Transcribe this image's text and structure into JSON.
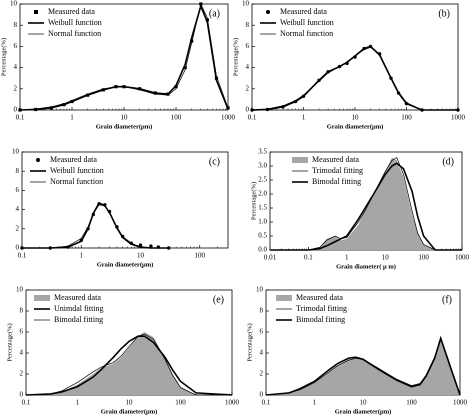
{
  "chart_data": [
    {
      "type": "line",
      "label": "(a)",
      "ylabel": "Percentage(%)",
      "xlabel": "Grain diameter(μm)",
      "log_x": true,
      "legend": "upper left",
      "xlim": [
        0.1,
        1000
      ],
      "xticks": [
        0.1,
        1,
        10,
        100,
        1000
      ],
      "ylim": [
        0,
        10
      ],
      "yticks": [
        0,
        2,
        4,
        6,
        8,
        10
      ],
      "x": [
        0.1,
        0.2,
        0.4,
        0.7,
        1,
        2,
        4,
        7,
        10,
        20,
        40,
        70,
        100,
        150,
        200,
        300,
        400,
        600,
        1000
      ],
      "series": [
        {
          "name": "Measured data",
          "mark": "square",
          "color": "#000",
          "values": [
            0,
            0.05,
            0.2,
            0.5,
            0.8,
            1.4,
            1.9,
            2.2,
            2.2,
            2,
            1.6,
            1.5,
            2.2,
            4,
            6.5,
            10,
            8.5,
            3,
            0.2
          ]
        },
        {
          "name": "Weibull function",
          "mark": "line",
          "width": 1.6,
          "color": "#000",
          "values": [
            0,
            0.05,
            0.2,
            0.5,
            0.8,
            1.4,
            1.9,
            2.2,
            2.2,
            2,
            1.6,
            1.5,
            2.3,
            4.3,
            6.8,
            9.8,
            8.3,
            2.8,
            0.1
          ]
        },
        {
          "name": "Normal function",
          "mark": "line",
          "width": 0.7,
          "color": "#000",
          "values": [
            0,
            0.1,
            0.3,
            0.6,
            0.9,
            1.5,
            2,
            2.2,
            2.2,
            1.9,
            1.5,
            1.4,
            2,
            3.8,
            6.3,
            10,
            8.7,
            3.2,
            0.2
          ]
        }
      ]
    },
    {
      "type": "line",
      "label": "(b)",
      "ylabel": "Percentage(%)",
      "xlabel": "Grain diameter(μm)",
      "log_x": true,
      "legend": "upper left",
      "xlim": [
        0.1,
        1000
      ],
      "xticks": [
        0.1,
        1,
        10,
        100,
        1000
      ],
      "ylim": [
        0,
        10
      ],
      "yticks": [
        0,
        2,
        4,
        6,
        8,
        10
      ],
      "x": [
        0.1,
        0.2,
        0.4,
        0.7,
        1,
        2,
        3,
        5,
        7,
        10,
        15,
        20,
        30,
        50,
        70,
        100,
        200,
        1000
      ],
      "series": [
        {
          "name": "Measured data",
          "mark": "circle",
          "color": "#000",
          "values": [
            0,
            0.05,
            0.3,
            0.8,
            1.3,
            2.8,
            3.6,
            4.1,
            4.4,
            5,
            5.8,
            6,
            5.3,
            3,
            1.6,
            0.6,
            0,
            0
          ]
        },
        {
          "name": "Weibull function",
          "mark": "line",
          "width": 1.6,
          "color": "#000",
          "values": [
            0,
            0.05,
            0.3,
            0.8,
            1.3,
            2.8,
            3.6,
            4.1,
            4.5,
            5.1,
            5.8,
            6,
            5.2,
            3,
            1.6,
            0.6,
            0,
            0
          ]
        },
        {
          "name": "Normal function",
          "mark": "line",
          "width": 0.7,
          "color": "#000",
          "values": [
            0,
            0.1,
            0.4,
            0.9,
            1.4,
            2.7,
            3.5,
            4.1,
            4.5,
            5.1,
            5.7,
            5.9,
            5.3,
            3.1,
            1.7,
            0.7,
            0,
            0
          ]
        }
      ]
    },
    {
      "type": "line",
      "label": "(c)",
      "xlabel": "Grain diameter(μm)",
      "log_x": true,
      "legend": "upper left",
      "xlim": [
        0.1,
        300
      ],
      "xticks": [
        0.1,
        1,
        10,
        100
      ],
      "ylim": [
        0,
        10
      ],
      "yticks": [
        0,
        2,
        4,
        6,
        8,
        10
      ],
      "x": [
        0.1,
        0.3,
        0.6,
        1,
        1.3,
        1.6,
        2,
        2.5,
        3,
        4,
        5,
        7,
        10,
        15,
        20,
        30
      ],
      "series": [
        {
          "name": "Measured data",
          "mark": "circle",
          "color": "#000",
          "values": [
            0,
            0,
            0.1,
            0.8,
            2,
            3.5,
            4.6,
            4.5,
            3.8,
            2.2,
            1.2,
            0.5,
            0.3,
            0.2,
            0.1,
            0
          ]
        },
        {
          "name": "Weibull function",
          "mark": "line",
          "width": 1.6,
          "color": "#000",
          "values": [
            0,
            0,
            0.1,
            0.7,
            2,
            3.6,
            4.7,
            4.4,
            3.7,
            2.1,
            1.1,
            0.4,
            0.1,
            0,
            0,
            0
          ]
        },
        {
          "name": "Normal function",
          "mark": "line",
          "width": 0.7,
          "color": "#000",
          "values": [
            0,
            0,
            0.2,
            1,
            2.2,
            3.6,
            4.5,
            4.4,
            3.7,
            2.2,
            1.2,
            0.5,
            0.1,
            0,
            0,
            0
          ]
        }
      ]
    },
    {
      "type": "line",
      "label": "(d)",
      "ylabel": "Percentage(%)",
      "xlabel": "Grain diameter( μ m)",
      "log_x": true,
      "legend": "upper left",
      "xlim": [
        0.01,
        1000
      ],
      "xticks": [
        0.01,
        0.1,
        1,
        10,
        100,
        1000
      ],
      "ylim": [
        0,
        3.5
      ],
      "yticks": [
        {
          "value": 0,
          "label": "0.0"
        },
        0.5,
        {
          "value": 1,
          "label": "1.0"
        },
        1.5,
        {
          "value": 2,
          "label": "2.0"
        },
        2.5,
        {
          "value": 3,
          "label": "3.0"
        },
        3.5
      ],
      "x": [
        0.01,
        0.1,
        0.2,
        0.3,
        0.5,
        0.7,
        1,
        2,
        3,
        5,
        10,
        15,
        20,
        30,
        50,
        70,
        100,
        200,
        1000
      ],
      "series": [
        {
          "name": "Measured data",
          "mark": "area",
          "color": "#a6a6a6",
          "values": [
            0,
            0,
            0.1,
            0.4,
            0.5,
            0.35,
            0.4,
            0.9,
            1.4,
            2,
            2.8,
            3.3,
            3.2,
            2.6,
            1.3,
            0.6,
            0.2,
            0,
            0
          ]
        },
        {
          "name": "Trimodal fitting",
          "mark": "line",
          "width": 0.7,
          "color": "#000",
          "values": [
            0,
            0,
            0.1,
            0.35,
            0.5,
            0.4,
            0.45,
            1,
            1.4,
            2,
            2.8,
            3.2,
            3.3,
            2.7,
            1.4,
            0.6,
            0.2,
            0,
            0
          ]
        },
        {
          "name": "Bimodal fitting",
          "mark": "line",
          "width": 1.6,
          "color": "#000",
          "values": [
            0,
            0,
            0.05,
            0.15,
            0.3,
            0.4,
            0.5,
            1.1,
            1.5,
            2,
            2.7,
            3,
            3.1,
            2.9,
            2.1,
            1.2,
            0.5,
            0,
            0
          ]
        }
      ]
    },
    {
      "type": "line",
      "label": "(e)",
      "ylabel": "Percentage(%)",
      "xlabel": "Grain diameter(μm)",
      "log_x": true,
      "legend": "upper left",
      "xlim": [
        0.1,
        1000
      ],
      "xticks": [
        0.1,
        1,
        10,
        100,
        1000
      ],
      "ylim": [
        0,
        10
      ],
      "yticks": [
        0,
        2,
        4,
        6,
        8,
        10
      ],
      "x": [
        0.1,
        0.3,
        0.5,
        1,
        2,
        3,
        5,
        7,
        10,
        15,
        20,
        30,
        50,
        70,
        100,
        200,
        1000
      ],
      "series": [
        {
          "name": "Measured data",
          "mark": "area",
          "color": "#a6a6a6",
          "values": [
            0,
            0.1,
            0.3,
            1,
            2,
            2.6,
            3,
            3.6,
            4.5,
            5.6,
            6,
            5.5,
            3.5,
            2,
            0.8,
            0,
            0
          ]
        },
        {
          "name": "Unimdal fitting",
          "mark": "line",
          "width": 1.6,
          "color": "#000",
          "values": [
            0,
            0.1,
            0.3,
            0.8,
            1.7,
            2.5,
            3.6,
            4.4,
            5.1,
            5.6,
            5.6,
            5,
            3.6,
            2.4,
            1.3,
            0.2,
            0
          ]
        },
        {
          "name": "Bimodal fitting",
          "mark": "line",
          "width": 0.7,
          "color": "#000",
          "values": [
            0,
            0.1,
            0.4,
            1.2,
            2.2,
            2.7,
            3.1,
            3.7,
            4.6,
            5.6,
            5.8,
            5.3,
            3.4,
            1.9,
            0.7,
            0,
            0
          ]
        }
      ]
    },
    {
      "type": "line",
      "label": "(f)",
      "ylabel": "Percentage(%)",
      "xlabel": "Grain diameter(μm)",
      "log_x": true,
      "legend": "upper left",
      "xlim": [
        0.1,
        1000
      ],
      "xticks": [
        0.1,
        1,
        10,
        100,
        1000
      ],
      "ylim": [
        0,
        10
      ],
      "yticks": [
        0,
        2,
        4,
        6,
        8,
        10
      ],
      "x": [
        0.1,
        0.3,
        0.5,
        1,
        2,
        3,
        5,
        7,
        10,
        20,
        30,
        50,
        100,
        150,
        200,
        300,
        400,
        600,
        1000
      ],
      "series": [
        {
          "name": "Measured data",
          "mark": "area",
          "color": "#a6a6a6",
          "values": [
            0,
            0.2,
            0.5,
            1.2,
            2.2,
            2.8,
            3.4,
            3.5,
            3.4,
            2.6,
            2.1,
            1.4,
            0.8,
            1,
            1.8,
            3.5,
            5.3,
            3,
            0
          ]
        },
        {
          "name": "Trimodal fitting",
          "mark": "line",
          "width": 0.7,
          "color": "#000",
          "values": [
            0,
            0.2,
            0.5,
            1.2,
            2.2,
            2.8,
            3.3,
            3.5,
            3.4,
            2.6,
            2.1,
            1.5,
            0.9,
            1.1,
            1.9,
            3.6,
            5.4,
            2.9,
            0
          ]
        },
        {
          "name": "Bimodal fitting",
          "mark": "line",
          "width": 1.6,
          "color": "#000",
          "values": [
            0,
            0.2,
            0.6,
            1.3,
            2.4,
            3,
            3.5,
            3.6,
            3.4,
            2.5,
            2,
            1.4,
            0.8,
            1,
            1.8,
            3.5,
            5.4,
            3,
            0
          ]
        }
      ]
    }
  ]
}
